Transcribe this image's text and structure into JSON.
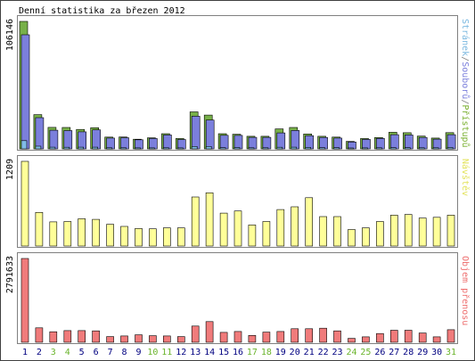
{
  "chart_data": {
    "type": "bar",
    "title": "Denní statistika za březen 2012",
    "categories": [
      "1",
      "2",
      "3",
      "4",
      "5",
      "6",
      "7",
      "8",
      "9",
      "10",
      "11",
      "12",
      "13",
      "14",
      "15",
      "16",
      "17",
      "18",
      "19",
      "20",
      "21",
      "22",
      "23",
      "24",
      "25",
      "26",
      "27",
      "28",
      "29",
      "30",
      "31"
    ],
    "weekend_days": [
      "3",
      "4",
      "10",
      "11",
      "17",
      "18",
      "24",
      "25",
      "31"
    ],
    "panels": [
      {
        "id": "traffic",
        "ymax_label": "106146",
        "ymax": 106146,
        "side_label_parts": [
          {
            "text": "Stránek",
            "color": "#7ab8e0"
          },
          {
            "text": "/",
            "color": "#808080"
          },
          {
            "text": "Souborů",
            "color": "#7b7fdc"
          },
          {
            "text": "/",
            "color": "#808080"
          },
          {
            "text": "Přístupů",
            "color": "#7ab030"
          }
        ],
        "series": [
          {
            "name": "Přístupů",
            "color": "#77b049",
            "values": [
              106146,
              28500,
              17900,
              17800,
              16200,
              17600,
              9800,
              9900,
              8000,
              9200,
              12600,
              8600,
              30800,
              28100,
              12600,
              12200,
              10500,
              10500,
              16600,
              17800,
              12400,
              10500,
              9800,
              6200,
              8600,
              9400,
              13800,
              13400,
              10600,
              9000,
              13500
            ]
          },
          {
            "name": "Souborů",
            "color": "#7b7fdc",
            "values": [
              95000,
              26000,
              15500,
              15200,
              14200,
              15800,
              9000,
              9300,
              7600,
              8600,
              11600,
              7800,
              27200,
              24000,
              11300,
              11200,
              9600,
              9600,
              13300,
              15300,
              11000,
              9500,
              9000,
              5700,
              7900,
              8700,
              11800,
              11600,
              9500,
              8100,
              11800
            ]
          },
          {
            "name": "Stránek",
            "color": "#80bce8",
            "values": [
              6800,
              2200,
              1400,
              1300,
              1400,
              1400,
              900,
              900,
              800,
              800,
              900,
              800,
              2000,
              2000,
              1000,
              1100,
              900,
              900,
              1300,
              1400,
              1200,
              1000,
              1000,
              700,
              800,
              900,
              1000,
              1000,
              900,
              900,
              1200
            ]
          }
        ]
      },
      {
        "id": "visits",
        "ymax_label": "1209",
        "ymax": 1209,
        "side_label_parts": [
          {
            "text": "Návštěv",
            "color": "#e3e35b"
          }
        ],
        "series": [
          {
            "name": "Návštěv",
            "color": "#ffff99",
            "values": [
              1209,
              480,
              345,
              350,
              390,
              380,
              310,
              280,
              250,
              245,
              260,
              260,
              700,
              760,
              470,
              500,
              300,
              350,
              520,
              560,
              690,
              420,
              420,
              235,
              260,
              350,
              440,
              450,
              400,
              410,
              440
            ]
          }
        ]
      },
      {
        "id": "transfer",
        "ymax_label": "2791633",
        "ymax": 2791633,
        "side_label_parts": [
          {
            "text": "Objem přenosu",
            "color": "#ee6f6f"
          }
        ],
        "series": [
          {
            "name": "Objem přenosu",
            "color": "#f07b7b",
            "values": [
              2791633,
              480000,
              350000,
              390000,
              390000,
              380000,
              190000,
              210000,
              250000,
              220000,
              210000,
              190000,
              540000,
              690000,
              330000,
              360000,
              230000,
              340000,
              360000,
              450000,
              450000,
              470000,
              380000,
              130000,
              180000,
              290000,
              400000,
              400000,
              310000,
              180000,
              420000
            ]
          }
        ]
      }
    ],
    "colors": {
      "weekday_label": "#000080",
      "weekend_label": "#6ab42b",
      "panel_border": "#808080",
      "page_border": "#404040"
    }
  }
}
